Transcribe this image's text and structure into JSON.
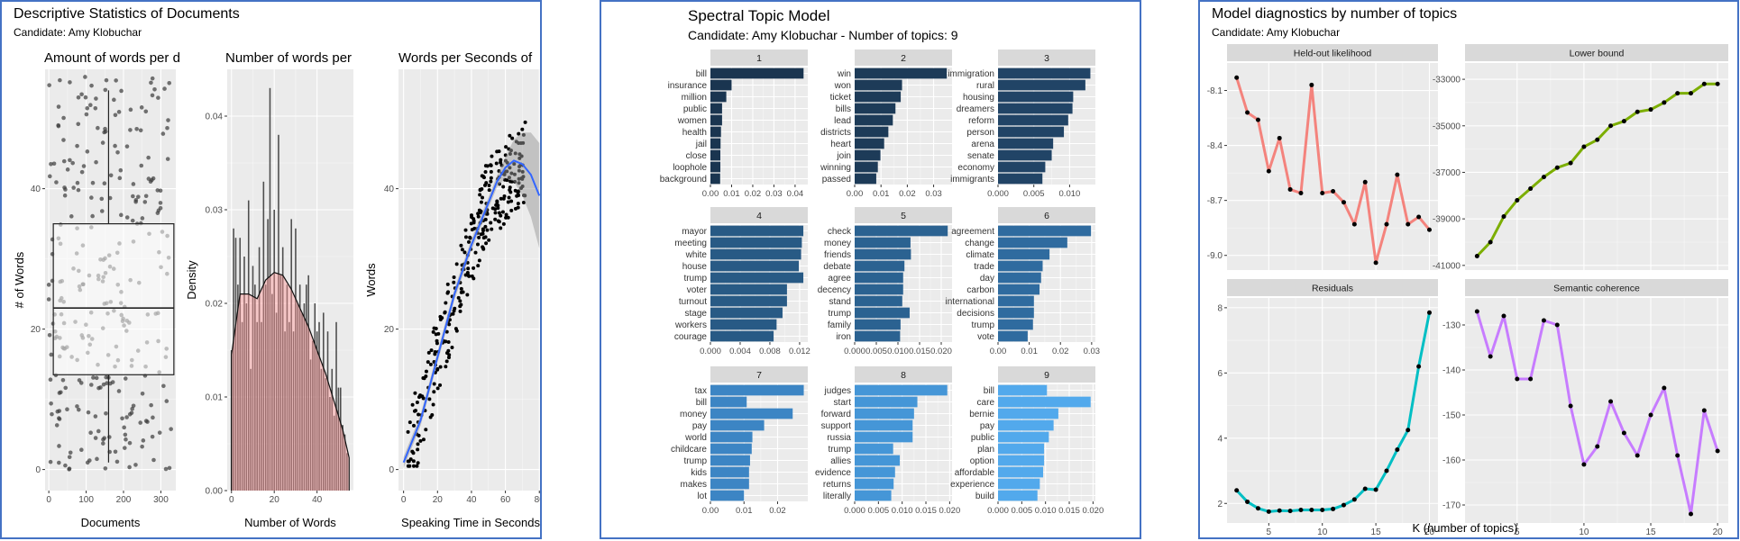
{
  "panels": {
    "descriptive": {
      "title": "Descriptive Statistics of Documents",
      "subtitle": "Candidate: Amy Klobuchar"
    },
    "stm": {
      "title": "Spectral Topic Model",
      "subtitle": "Candidate: Amy Klobuchar - Number of topics: 9"
    },
    "diagnostics": {
      "title": "Model diagnostics by number of topics",
      "subtitle": "Candidate: Amy Klobuchar"
    }
  },
  "chart_data": [
    {
      "id": "words_per_doc",
      "type": "scatter",
      "title": "Amount of words per d",
      "xlabel": "Documents",
      "ylabel": "# of Words",
      "xlim": [
        -10,
        340
      ],
      "ylim": [
        -3,
        57
      ],
      "xticks": [
        0,
        100,
        200,
        300
      ],
      "yticks": [
        0,
        20,
        40
      ],
      "boxplot": {
        "q1": 13.5,
        "median": 23,
        "q3": 35,
        "whisker_low": 1,
        "whisker_high": 54,
        "x": 160
      },
      "point_count": 300,
      "points_note": "jittered points spread over x 0-330, y 0-57"
    },
    {
      "id": "hist_words",
      "type": "bar",
      "title": "Number of words per",
      "xlabel": "Number of Words",
      "ylabel": "Density",
      "xlim": [
        -2,
        57
      ],
      "ylim": [
        0,
        0.045
      ],
      "xticks": [
        0,
        20,
        40
      ],
      "yticks": [
        0.0,
        0.01,
        0.02,
        0.03,
        0.04
      ],
      "bins_x": [
        0,
        1,
        2,
        3,
        4,
        5,
        6,
        7,
        8,
        9,
        10,
        11,
        12,
        13,
        14,
        15,
        16,
        17,
        18,
        19,
        20,
        21,
        22,
        23,
        24,
        25,
        26,
        27,
        28,
        29,
        30,
        31,
        32,
        33,
        34,
        35,
        36,
        37,
        38,
        39,
        40,
        41,
        42,
        43,
        44,
        45,
        46,
        47,
        48,
        49,
        50,
        51,
        52,
        53,
        54
      ],
      "bins_density": [
        0.015,
        0.028,
        0.027,
        0.022,
        0.027,
        0.018,
        0.025,
        0.02,
        0.031,
        0.013,
        0.024,
        0.022,
        0.018,
        0.026,
        0.018,
        0.033,
        0.022,
        0.029,
        0.043,
        0.021,
        0.03,
        0.019,
        0.038,
        0.023,
        0.026,
        0.017,
        0.022,
        0.018,
        0.029,
        0.017,
        0.028,
        0.02,
        0.022,
        0.019,
        0.02,
        0.022,
        0.023,
        0.014,
        0.016,
        0.02,
        0.017,
        0.018,
        0.013,
        0.019,
        0.012,
        0.017,
        0.01,
        0.013,
        0.008,
        0.018,
        0.011,
        0.011,
        0.007,
        0.006,
        0.004
      ],
      "density_curve_x": [
        0,
        4,
        8,
        12,
        16,
        20,
        24,
        28,
        32,
        36,
        40,
        44,
        48,
        52,
        55
      ],
      "density_curve_y": [
        0.0145,
        0.021,
        0.021,
        0.0205,
        0.0225,
        0.0233,
        0.023,
        0.0215,
        0.0195,
        0.0175,
        0.015,
        0.0125,
        0.0095,
        0.0065,
        0.0035
      ]
    },
    {
      "id": "words_per_seconds",
      "type": "scatter",
      "title": "Words per Seconds of",
      "xlabel": "Speaking Time in Seconds",
      "ylabel": "Words",
      "xlim": [
        -3,
        82
      ],
      "ylim": [
        -3,
        57
      ],
      "xticks": [
        0,
        20,
        40,
        60,
        80
      ],
      "yticks": [
        0,
        20,
        40
      ],
      "smooth_x": [
        0,
        10,
        20,
        30,
        40,
        50,
        55,
        60,
        65,
        70,
        75,
        80
      ],
      "smooth_y": [
        1,
        7,
        16,
        25,
        32,
        38,
        41,
        43,
        44,
        43.5,
        42,
        39
      ],
      "point_count": 300
    },
    {
      "id": "stm_topics",
      "type": "bar",
      "orientation": "horizontal",
      "topics": [
        {
          "label": "1",
          "terms": [
            "bill",
            "insurance",
            "million",
            "public",
            "women",
            "health",
            "jail",
            "close",
            "loophole",
            "background"
          ],
          "values": [
            0.044,
            0.01,
            0.0075,
            0.0055,
            0.0055,
            0.005,
            0.0048,
            0.0047,
            0.0047,
            0.0046
          ],
          "xmax": 0.046,
          "ticks": [
            0.0,
            0.01,
            0.02,
            0.03,
            0.04
          ],
          "tick_labels": [
            "0.00",
            "0.01",
            "0.02",
            "0.03",
            "0.04"
          ],
          "color": "#1a3550"
        },
        {
          "label": "2",
          "terms": [
            "win",
            "won",
            "ticket",
            "bills",
            "lead",
            "districts",
            "heart",
            "join",
            "winning",
            "passed"
          ],
          "values": [
            0.035,
            0.018,
            0.0175,
            0.0155,
            0.0145,
            0.0128,
            0.0112,
            0.0098,
            0.0088,
            0.0082
          ],
          "xmax": 0.037,
          "ticks": [
            0.0,
            0.01,
            0.02,
            0.03
          ],
          "tick_labels": [
            "0.00",
            "0.01",
            "0.02",
            "0.03"
          ],
          "color": "#1d3b58"
        },
        {
          "label": "3",
          "terms": [
            "immigration",
            "rural",
            "housing",
            "dreamers",
            "reform",
            "person",
            "arena",
            "senate",
            "economy",
            "immigrants"
          ],
          "values": [
            0.0129,
            0.0122,
            0.0105,
            0.0104,
            0.0098,
            0.0092,
            0.0077,
            0.0075,
            0.0066,
            0.0062
          ],
          "xmax": 0.0136,
          "ticks": [
            0.0,
            0.005,
            0.01
          ],
          "tick_labels": [
            "0.000",
            "0.005",
            "0.010"
          ],
          "color": "#214466"
        },
        {
          "label": "4",
          "terms": [
            "mayor",
            "meeting",
            "white",
            "house",
            "trump",
            "voter",
            "turnout",
            "stage",
            "workers",
            "courage"
          ],
          "values": [
            0.0125,
            0.0123,
            0.0122,
            0.0119,
            0.0125,
            0.0103,
            0.0103,
            0.0097,
            0.0089,
            0.0085
          ],
          "xmax": 0.0131,
          "ticks": [
            0.0,
            0.004,
            0.008,
            0.012
          ],
          "tick_labels": [
            "0.000",
            "0.004",
            "0.008",
            "0.012"
          ],
          "color": "#285a85"
        },
        {
          "label": "5",
          "terms": [
            "check",
            "money",
            "friends",
            "debate",
            "agree",
            "decency",
            "stand",
            "trump",
            "family",
            "iron"
          ],
          "values": [
            0.0215,
            0.0129,
            0.013,
            0.0115,
            0.0112,
            0.0112,
            0.011,
            0.0127,
            0.0106,
            0.0105
          ],
          "xmax": 0.0225,
          "ticks": [
            0.0,
            0.005,
            0.01,
            0.015,
            0.02
          ],
          "tick_labels": [
            "0.000",
            "0.005",
            "0.010",
            "0.015",
            "0.020"
          ],
          "color": "#2b6291"
        },
        {
          "label": "6",
          "terms": [
            "agreement",
            "change",
            "climate",
            "trade",
            "day",
            "carbon",
            "international",
            "decisions",
            "trump",
            "vote"
          ],
          "values": [
            0.0298,
            0.0222,
            0.0165,
            0.0143,
            0.0138,
            0.0133,
            0.0115,
            0.0115,
            0.0112,
            0.0095
          ],
          "xmax": 0.0312,
          "ticks": [
            0.0,
            0.01,
            0.02,
            0.03
          ],
          "tick_labels": [
            "0.00",
            "0.01",
            "0.02",
            "0.03"
          ],
          "color": "#2f6b9f"
        },
        {
          "label": "7",
          "terms": [
            "tax",
            "bill",
            "money",
            "pay",
            "world",
            "childcare",
            "trump",
            "kids",
            "makes",
            "lot"
          ],
          "values": [
            0.0278,
            0.0108,
            0.0245,
            0.016,
            0.0125,
            0.0123,
            0.0118,
            0.0115,
            0.0115,
            0.01
          ],
          "xmax": 0.029,
          "ticks": [
            0.0,
            0.01,
            0.02
          ],
          "tick_labels": [
            "0.00",
            "0.01",
            "0.02"
          ],
          "color": "#3c85c4"
        },
        {
          "label": "8",
          "terms": [
            "judges",
            "start",
            "forward",
            "support",
            "russia",
            "trump",
            "allies",
            "evidence",
            "returns",
            "literally"
          ],
          "values": [
            0.0195,
            0.0132,
            0.0125,
            0.0122,
            0.0122,
            0.0081,
            0.0095,
            0.0085,
            0.0082,
            0.0077
          ],
          "xmax": 0.0205,
          "ticks": [
            0.0,
            0.005,
            0.01,
            0.015,
            0.02
          ],
          "tick_labels": [
            "0.000",
            "0.005",
            "0.010",
            "0.015",
            "0.020"
          ],
          "color": "#4596d7"
        },
        {
          "label": "9",
          "terms": [
            "bill",
            "care",
            "bernie",
            "pay",
            "public",
            "plan",
            "option",
            "affordable",
            "experience",
            "build"
          ],
          "values": [
            0.0103,
            0.0195,
            0.0127,
            0.0117,
            0.0107,
            0.0097,
            0.0097,
            0.0095,
            0.0088,
            0.0083
          ],
          "xmax": 0.0205,
          "ticks": [
            0.0,
            0.005,
            0.01,
            0.015,
            0.02
          ],
          "tick_labels": [
            "0.000",
            "0.005",
            "0.010",
            "0.015",
            "0.020"
          ],
          "color": "#52a9ec"
        }
      ]
    },
    {
      "id": "diagnostics",
      "type": "line",
      "xlabel": "K (number of topics)",
      "x": [
        2,
        3,
        4,
        5,
        6,
        7,
        8,
        9,
        10,
        11,
        12,
        13,
        14,
        15,
        16,
        17,
        18,
        19,
        20
      ],
      "facets": [
        {
          "name": "Held-out likelihood",
          "color": "#f4837d",
          "ylim": [
            -9.08,
            -7.95
          ],
          "yticks": [
            -8.1,
            -8.4,
            -8.7,
            -9.0
          ],
          "tick_labels": [
            "-8.1",
            "-8.4",
            "-8.7",
            "-9.0"
          ],
          "values": [
            -8.03,
            -8.22,
            -8.26,
            -8.54,
            -8.36,
            -8.64,
            -8.66,
            -8.07,
            -8.66,
            -8.65,
            -8.71,
            -8.83,
            -8.6,
            -9.04,
            -8.83,
            -8.56,
            -8.83,
            -8.79,
            -8.86
          ]
        },
        {
          "name": "Lower bound",
          "color": "#7cae00",
          "ylim": [
            -41200,
            -32300
          ],
          "yticks": [
            -33000,
            -35000,
            -37000,
            -39000,
            -41000
          ],
          "tick_labels": [
            "-33000",
            "-35000",
            "-37000",
            "-39000",
            "-41000"
          ],
          "values": [
            -40600,
            -40000,
            -38900,
            -38200,
            -37700,
            -37200,
            -36800,
            -36600,
            -35900,
            -35600,
            -35000,
            -34800,
            -34400,
            -34300,
            -34000,
            -33600,
            -33600,
            -33200,
            -33200
          ]
        },
        {
          "name": "Residuals",
          "color": "#00bfc4",
          "ylim": [
            1.4,
            8.3
          ],
          "yticks": [
            2,
            4,
            6,
            8
          ],
          "tick_labels": [
            "2",
            "4",
            "6",
            "8"
          ],
          "values": [
            2.4,
            2.05,
            1.85,
            1.75,
            1.78,
            1.77,
            1.8,
            1.8,
            1.8,
            1.83,
            1.95,
            2.12,
            2.45,
            2.42,
            3.0,
            3.65,
            4.25,
            6.2,
            7.85
          ]
        },
        {
          "name": "Semantic coherence",
          "color": "#c77cff",
          "ylim": [
            -174,
            -124
          ],
          "yticks": [
            -130,
            -140,
            -150,
            -160,
            -170
          ],
          "tick_labels": [
            "-130",
            "-140",
            "-150",
            "-160",
            "-170"
          ],
          "values": [
            -127,
            -137,
            -128,
            -142,
            -142,
            -129,
            -130,
            -148,
            -161,
            -157,
            -147,
            -154,
            -159,
            -150,
            -144,
            -159,
            -172,
            -149,
            -158
          ]
        }
      ]
    }
  ]
}
